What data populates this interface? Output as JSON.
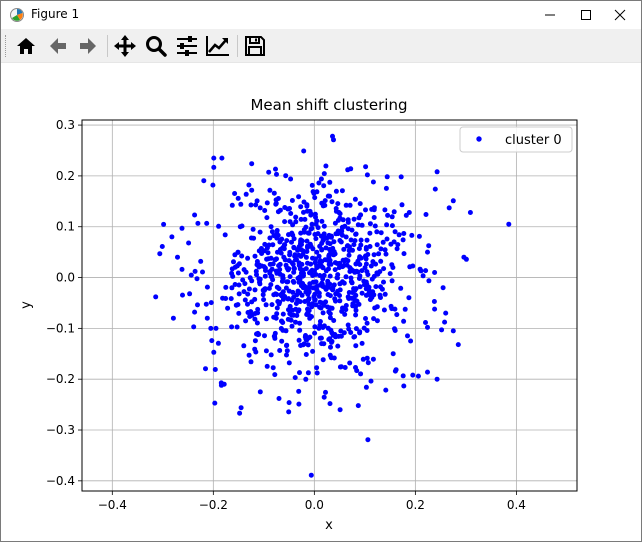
{
  "window": {
    "title": "Figure 1",
    "controls": [
      "minimize",
      "maximize",
      "close"
    ]
  },
  "toolbar": {
    "tools": [
      "home-icon",
      "back-icon",
      "forward-icon",
      "pan-icon",
      "zoom-icon",
      "subplots-icon",
      "axes-edit-icon",
      "save-icon"
    ]
  },
  "colors": {
    "points": "#0000ff",
    "grid": "#b0b0b0"
  },
  "chart_data": {
    "type": "scatter",
    "title": "Mean shift clustering",
    "xlabel": "x",
    "ylabel": "y",
    "xlim": [
      -0.46,
      0.52
    ],
    "ylim": [
      -0.42,
      0.31
    ],
    "xticks": [
      -0.4,
      -0.2,
      0.0,
      0.2,
      0.4
    ],
    "xtick_labels": [
      "−0.4",
      "−0.2",
      "0.0",
      "0.2",
      "0.4"
    ],
    "yticks": [
      0.3,
      0.2,
      0.1,
      0.0,
      -0.1,
      -0.2,
      -0.3,
      -0.4
    ],
    "ytick_labels": [
      "0.3",
      "0.2",
      "0.1",
      "0.0",
      "−0.1",
      "−0.2",
      "−0.3",
      "−0.4"
    ],
    "grid": true,
    "legend": {
      "position": "upper-right",
      "entries": [
        "cluster 0"
      ]
    },
    "series": [
      {
        "name": "cluster 0",
        "color": "#0000ff",
        "points": [
          [
            0.036,
            0.278
          ],
          [
            0.038,
            0.271
          ],
          [
            -0.021,
            0.249
          ],
          [
            -0.199,
            0.235
          ],
          [
            -0.183,
            0.235
          ],
          [
            -0.124,
            0.224
          ],
          [
            0.066,
            0.212
          ],
          [
            0.072,
            0.214
          ],
          [
            0.243,
            0.208
          ],
          [
            -0.075,
            0.203
          ],
          [
            0.105,
            0.202
          ],
          [
            0.172,
            0.198
          ],
          [
            -0.047,
            0.194
          ],
          [
            0.014,
            0.194
          ],
          [
            0.009,
            0.186
          ],
          [
            0.117,
            0.188
          ],
          [
            0.275,
            0.151
          ],
          [
            0.267,
            0.137
          ],
          [
            0.188,
            0.128
          ],
          [
            0.309,
            0.128
          ],
          [
            0.385,
            0.105
          ],
          [
            -0.237,
            0.123
          ],
          [
            -0.262,
            0.097
          ],
          [
            -0.249,
            0.068
          ],
          [
            -0.282,
            0.08
          ],
          [
            -0.301,
            0.061
          ],
          [
            -0.306,
            0.047
          ],
          [
            -0.271,
            0.04
          ],
          [
            -0.262,
            0.016
          ],
          [
            -0.236,
            0.012
          ],
          [
            -0.314,
            -0.038
          ],
          [
            -0.279,
            -0.08
          ],
          [
            -0.237,
            -0.068
          ],
          [
            -0.212,
            -0.08
          ],
          [
            -0.205,
            -0.1
          ],
          [
            -0.203,
            -0.124
          ],
          [
            -0.199,
            -0.147
          ],
          [
            -0.196,
            -0.181
          ],
          [
            -0.197,
            -0.247
          ],
          [
            -0.145,
            -0.256
          ],
          [
            -0.148,
            -0.267
          ],
          [
            -0.184,
            -0.212
          ],
          [
            0.224,
            -0.186
          ],
          [
            0.243,
            -0.2
          ],
          [
            0.206,
            -0.194
          ],
          [
            0.195,
            -0.192
          ],
          [
            0.285,
            -0.132
          ],
          [
            0.275,
            -0.105
          ],
          [
            0.252,
            -0.103
          ],
          [
            0.224,
            -0.098
          ],
          [
            0.26,
            -0.07
          ],
          [
            0.238,
            -0.062
          ],
          [
            0.296,
            0.04
          ],
          [
            0.301,
            0.036
          ],
          [
            0.255,
            -0.02
          ],
          [
            0.238,
            0.01
          ],
          [
            0.224,
            0.05
          ],
          [
            0.193,
            0.083
          ],
          [
            0.221,
            0.124
          ],
          [
            -0.006,
            -0.389
          ],
          [
            0.106,
            -0.319
          ],
          [
            0.051,
            -0.26
          ],
          [
            0.087,
            -0.252
          ],
          [
            0.031,
            -0.248
          ],
          [
            0.022,
            -0.226
          ],
          [
            0.103,
            -0.216
          ],
          [
            -0.031,
            -0.224
          ],
          [
            -0.05,
            -0.246
          ],
          [
            -0.07,
            -0.238
          ],
          [
            -0.107,
            -0.225
          ],
          [
            -0.029,
            0.001
          ],
          [
            0.015,
            -0.011
          ],
          [
            0.033,
            0.026
          ]
        ]
      }
    ]
  }
}
